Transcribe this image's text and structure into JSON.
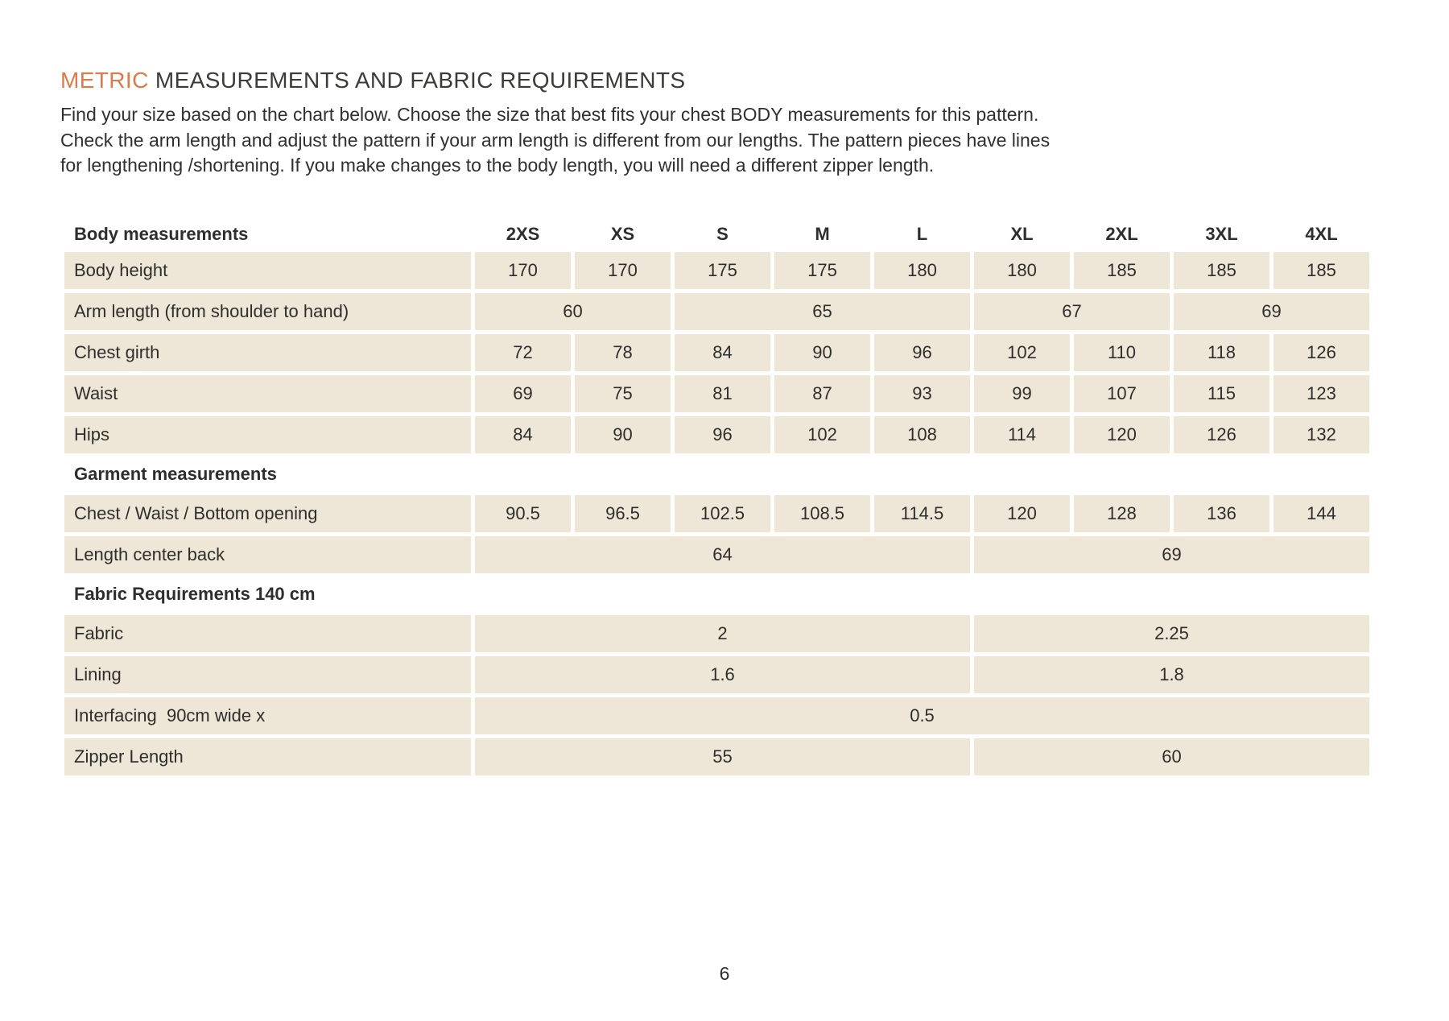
{
  "colors": {
    "accent_orange": "#DD7A4B",
    "cell_beige": "#EEE7D7",
    "text_dark": "#2E2E2C"
  },
  "page": {
    "title": {
      "highlight": "METRIC",
      "rest": " MEASUREMENTS AND FABRIC REQUIREMENTS"
    },
    "intro_lines": [
      "Find your size based on the chart below. Choose the size that best fits your chest BODY measurements for this pattern.",
      "Check the arm length and adjust the pattern if your arm length is different from our lengths. The pattern pieces have lines",
      "for lengthening /shortening. If you make changes to the body length, you will need a different zipper length."
    ],
    "page_number": "6"
  },
  "table": {
    "header": {
      "label": "Body measurements",
      "sizes": [
        "2XS",
        "XS",
        "S",
        "M",
        "L",
        "XL",
        "2XL",
        "3XL",
        "4XL"
      ]
    },
    "rows": {
      "body_height": {
        "label": "Body height",
        "values": [
          "170",
          "170",
          "175",
          "175",
          "180",
          "180",
          "185",
          "185",
          "185"
        ]
      },
      "arm_length": {
        "label": "Arm length (from shoulder to hand)",
        "spans": [
          {
            "cols": 2,
            "value": "60"
          },
          {
            "cols": 3,
            "value": "65"
          },
          {
            "cols": 2,
            "value": "67"
          },
          {
            "cols": 2,
            "value": "69"
          }
        ]
      },
      "chest_girth": {
        "label": "Chest girth",
        "values": [
          "72",
          "78",
          "84",
          "90",
          "96",
          "102",
          "110",
          "118",
          "126"
        ]
      },
      "waist": {
        "label": "Waist",
        "values": [
          "69",
          "75",
          "81",
          "87",
          "93",
          "99",
          "107",
          "115",
          "123"
        ]
      },
      "hips": {
        "label": "Hips",
        "values": [
          "84",
          "90",
          "96",
          "102",
          "108",
          "114",
          "120",
          "126",
          "132"
        ]
      },
      "garment_section": {
        "label": "Garment measurements"
      },
      "chest_waist_bottom": {
        "label": "Chest / Waist / Bottom opening",
        "values": [
          "90.5",
          "96.5",
          "102.5",
          "108.5",
          "114.5",
          "120",
          "128",
          "136",
          "144"
        ]
      },
      "length_center_back": {
        "label": "Length center back",
        "spans": [
          {
            "cols": 5,
            "value": "64"
          },
          {
            "cols": 4,
            "value": "69"
          }
        ]
      },
      "fabric_section": {
        "label": "Fabric Requirements 140 cm"
      },
      "fabric": {
        "label": "Fabric",
        "spans": [
          {
            "cols": 5,
            "value": "2"
          },
          {
            "cols": 4,
            "value": "2.25"
          }
        ]
      },
      "lining": {
        "label": "Lining",
        "spans": [
          {
            "cols": 5,
            "value": "1.6"
          },
          {
            "cols": 4,
            "value": "1.8"
          }
        ]
      },
      "interfacing": {
        "label": "Interfacing  90cm wide x",
        "spans": [
          {
            "cols": 9,
            "value": "0.5"
          }
        ]
      },
      "zipper_length": {
        "label": "Zipper Length",
        "spans": [
          {
            "cols": 5,
            "value": "55"
          },
          {
            "cols": 4,
            "value": "60"
          }
        ]
      }
    }
  }
}
